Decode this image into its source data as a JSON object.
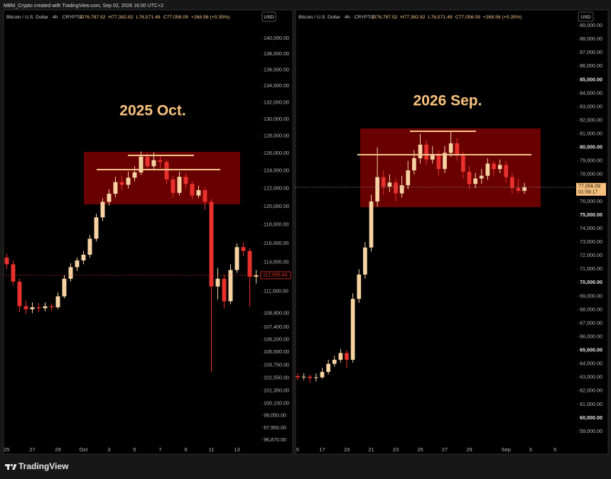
{
  "attribution": "MBM_Crypto created with TradingView.com, Sep 02, 2026 16:00 UTC+2",
  "brand": "TradingView",
  "chart_data": [
    {
      "type": "candlestick",
      "title": "Bitcoin / U.S. Dollar · 4h · CRYPTO",
      "legend_values": [
        "O76,787.52",
        "H77,382.82",
        "L76,571.48",
        "C77,056.09",
        "+268.56 (+0.35%)"
      ],
      "currency": "USD",
      "annotation": "2025 Oct.",
      "log": true,
      "up_color": "#f7d3a4",
      "down_color": "#e8302c",
      "categories": [
        "25",
        null,
        null,
        null,
        "27",
        null,
        null,
        null,
        "29",
        null,
        null,
        null,
        "Oct",
        null,
        null,
        null,
        "3",
        null,
        null,
        null,
        "5",
        null,
        null,
        null,
        "7",
        null,
        null,
        null,
        "9",
        null,
        null,
        null,
        "11",
        null,
        null,
        null,
        "13",
        null,
        null,
        null
      ],
      "open": [
        114500,
        113800,
        112000,
        109500,
        109200,
        109400,
        109300,
        109500,
        109400,
        110500,
        112300,
        113500,
        114200,
        114800,
        116500,
        118800,
        120500,
        121400,
        122700,
        122400,
        123200,
        123800,
        125600,
        124500,
        125200,
        125000,
        123000,
        121500,
        123300,
        122500,
        121200,
        121800,
        120500,
        111500,
        112300,
        110000,
        113200,
        115600,
        115200,
        112500
      ],
      "high": [
        114900,
        114200,
        112300,
        110100,
        109900,
        109800,
        109900,
        109800,
        110900,
        112700,
        113900,
        114500,
        115200,
        116900,
        119200,
        120900,
        121900,
        123300,
        123400,
        123900,
        124500,
        126200,
        126000,
        126100,
        125700,
        125300,
        123400,
        123900,
        123700,
        122800,
        122300,
        122100,
        120800,
        113400,
        112700,
        113800,
        116000,
        116100,
        115500,
        113200
      ],
      "low": [
        113300,
        111600,
        108900,
        108700,
        108800,
        108900,
        109000,
        109000,
        109200,
        110300,
        112000,
        113100,
        113800,
        114500,
        116200,
        118400,
        120100,
        121000,
        121800,
        122000,
        122800,
        123500,
        124000,
        124200,
        124300,
        122500,
        121000,
        121200,
        122000,
        120800,
        120900,
        119600,
        103100,
        110200,
        109300,
        109700,
        112900,
        114700,
        109500,
        111800
      ],
      "close": [
        113800,
        112000,
        109500,
        109200,
        109400,
        109300,
        109500,
        109400,
        110500,
        112300,
        113500,
        114200,
        114800,
        116500,
        118800,
        120500,
        121400,
        122700,
        122400,
        123200,
        123800,
        125600,
        124500,
        125200,
        125000,
        123000,
        121500,
        123300,
        122500,
        121200,
        121800,
        120500,
        111500,
        112300,
        110000,
        113200,
        115600,
        115200,
        112500,
        112656.84
      ],
      "last_price": {
        "value": 112656.84,
        "label": "112,656.84"
      },
      "ylim": [
        96550,
        142200
      ],
      "yticks": [
        {
          "value": 140000,
          "label": "140,000.00"
        },
        {
          "value": 138000,
          "label": "138,000.00"
        },
        {
          "value": 136000,
          "label": "136,000.00"
        },
        {
          "value": 134000,
          "label": "134,000.00"
        },
        {
          "value": 132000,
          "label": "132,000.00"
        },
        {
          "value": 130000,
          "label": "130,000.00"
        },
        {
          "value": 128000,
          "label": "128,000.00"
        },
        {
          "value": 126000,
          "label": "126,000.00"
        },
        {
          "value": 124000,
          "label": "124,000.00"
        },
        {
          "value": 122000,
          "label": "122,000.00"
        },
        {
          "value": 120000,
          "label": "120,000.00"
        },
        {
          "value": 118000,
          "label": "118,000.00"
        },
        {
          "value": 116000,
          "label": "116,000.00"
        },
        {
          "value": 114000,
          "label": "114,000.00"
        },
        {
          "value": 111000,
          "label": "111,000.00"
        },
        {
          "value": 108800,
          "label": "108,800.00"
        },
        {
          "value": 107400,
          "label": "107,400.00"
        },
        {
          "value": 106200,
          "label": "106,200.00"
        },
        {
          "value": 105000,
          "label": "105,000.00"
        },
        {
          "value": 103750,
          "label": "103,750.00"
        },
        {
          "value": 102550,
          "label": "102,550.00"
        },
        {
          "value": 101350,
          "label": "101,350.00"
        },
        {
          "value": 100150,
          "label": "100,150.00"
        },
        {
          "value": 99050,
          "label": "99,050.00"
        },
        {
          "value": 97950,
          "label": "97,950.00"
        },
        {
          "value": 96870,
          "label": "96,870.00"
        }
      ]
    },
    {
      "type": "candlestick",
      "title": "Bitcoin / U.S. Dollar · 4h · CRYPTO",
      "legend_values": [
        "O76,787.52",
        "H77,382.82",
        "L76,571.48",
        "C77,056.09",
        "+268.56 (+0.35%)"
      ],
      "currency": "USD",
      "annotation": "2026 Sep.",
      "log": false,
      "up_color": "#f7d3a4",
      "down_color": "#e8302c",
      "categories": [
        "5",
        null,
        null,
        null,
        "17",
        null,
        null,
        null,
        "19",
        null,
        null,
        null,
        "21",
        null,
        null,
        null,
        "23",
        null,
        null,
        null,
        "25",
        null,
        null,
        null,
        "27",
        null,
        null,
        null,
        "29",
        null,
        null,
        null,
        null,
        null,
        "Sep",
        null,
        null,
        null,
        "3",
        null,
        null,
        null,
        "5"
      ],
      "open": [
        63100,
        63000,
        63050,
        62950,
        63000,
        63400,
        64000,
        64300,
        64800,
        64300,
        68800,
        70600,
        72600,
        76000,
        77800,
        77100,
        77400,
        76600,
        77200,
        78300,
        79200,
        80200,
        79100,
        79500,
        78400,
        79600,
        80300,
        79400,
        78200,
        77300,
        77700,
        77900,
        78800,
        78400,
        78700,
        77800,
        77000,
        76787.52,
        null,
        null,
        null,
        null,
        null
      ],
      "high": [
        63300,
        63300,
        63200,
        63300,
        63700,
        64300,
        64600,
        65100,
        65000,
        69200,
        71000,
        73000,
        76500,
        80000,
        78300,
        78000,
        77700,
        77900,
        79000,
        79800,
        81000,
        80500,
        80100,
        79800,
        80100,
        81200,
        80700,
        79700,
        78600,
        78100,
        78400,
        79200,
        79000,
        79100,
        79000,
        78100,
        77700,
        77382.82,
        null,
        null,
        null,
        null,
        null
      ],
      "low": [
        62800,
        62800,
        62600,
        62700,
        62900,
        63200,
        63800,
        64100,
        63700,
        64100,
        68500,
        70300,
        72300,
        75600,
        76500,
        76700,
        76000,
        76300,
        76900,
        78000,
        78800,
        78700,
        78800,
        77900,
        78100,
        79300,
        79000,
        77700,
        76900,
        77000,
        77300,
        77600,
        77900,
        78100,
        77400,
        76600,
        76600,
        76571.48,
        null,
        null,
        null,
        null,
        null
      ],
      "close": [
        63000,
        63050,
        62950,
        63000,
        63400,
        64000,
        64300,
        64800,
        64300,
        68800,
        70600,
        72600,
        76000,
        77800,
        77100,
        77400,
        76600,
        77200,
        78300,
        79200,
        80200,
        79100,
        79500,
        78400,
        79600,
        80300,
        79400,
        78200,
        77300,
        77700,
        77900,
        78800,
        78400,
        78700,
        77800,
        77000,
        76787.52,
        77056.09,
        null,
        null,
        null,
        null,
        null
      ],
      "last_price": {
        "value": 77056.09,
        "label": "77,056.09"
      },
      "countdown": "01:59:17",
      "ylim": [
        58110,
        89320
      ],
      "yticks": [
        {
          "value": 89000,
          "label": "89,000.00"
        },
        {
          "value": 88000,
          "label": "88,000.00"
        },
        {
          "value": 87000,
          "label": "87,000.00"
        },
        {
          "value": 86000,
          "label": "86,000.00"
        },
        {
          "value": 85000,
          "label": "85,000.00"
        },
        {
          "value": 84000,
          "label": "84,000.00"
        },
        {
          "value": 83000,
          "label": "83,000.00"
        },
        {
          "value": 82000,
          "label": "82,000.00"
        },
        {
          "value": 81000,
          "label": "81,000.00"
        },
        {
          "value": 80000,
          "label": "80,000.00"
        },
        {
          "value": 79000,
          "label": "79,000.00"
        },
        {
          "value": 78000,
          "label": "78,000.00"
        },
        {
          "value": 77000,
          "label": "77,000.00"
        },
        {
          "value": 76000,
          "label": "76,000.00"
        },
        {
          "value": 75000,
          "label": "75,000.00"
        },
        {
          "value": 74000,
          "label": "74,000.00"
        },
        {
          "value": 73000,
          "label": "73,000.00"
        },
        {
          "value": 72000,
          "label": "72,000.00"
        },
        {
          "value": 71000,
          "label": "71,000.00"
        },
        {
          "value": 70000,
          "label": "70,000.00"
        },
        {
          "value": 69000,
          "label": "69,000.00"
        },
        {
          "value": 68000,
          "label": "68,000.00"
        },
        {
          "value": 67000,
          "label": "67,000.00"
        },
        {
          "value": 66000,
          "label": "66,000.00"
        },
        {
          "value": 65000,
          "label": "65,000.00"
        },
        {
          "value": 64000,
          "label": "64,000.00"
        },
        {
          "value": 63000,
          "label": "63,000.00"
        },
        {
          "value": 62000,
          "label": "62,000.00"
        },
        {
          "value": 61000,
          "label": "61,000.00"
        },
        {
          "value": 60000,
          "label": "60,000.00"
        },
        {
          "value": 59000,
          "label": "59,000.00"
        }
      ]
    }
  ]
}
